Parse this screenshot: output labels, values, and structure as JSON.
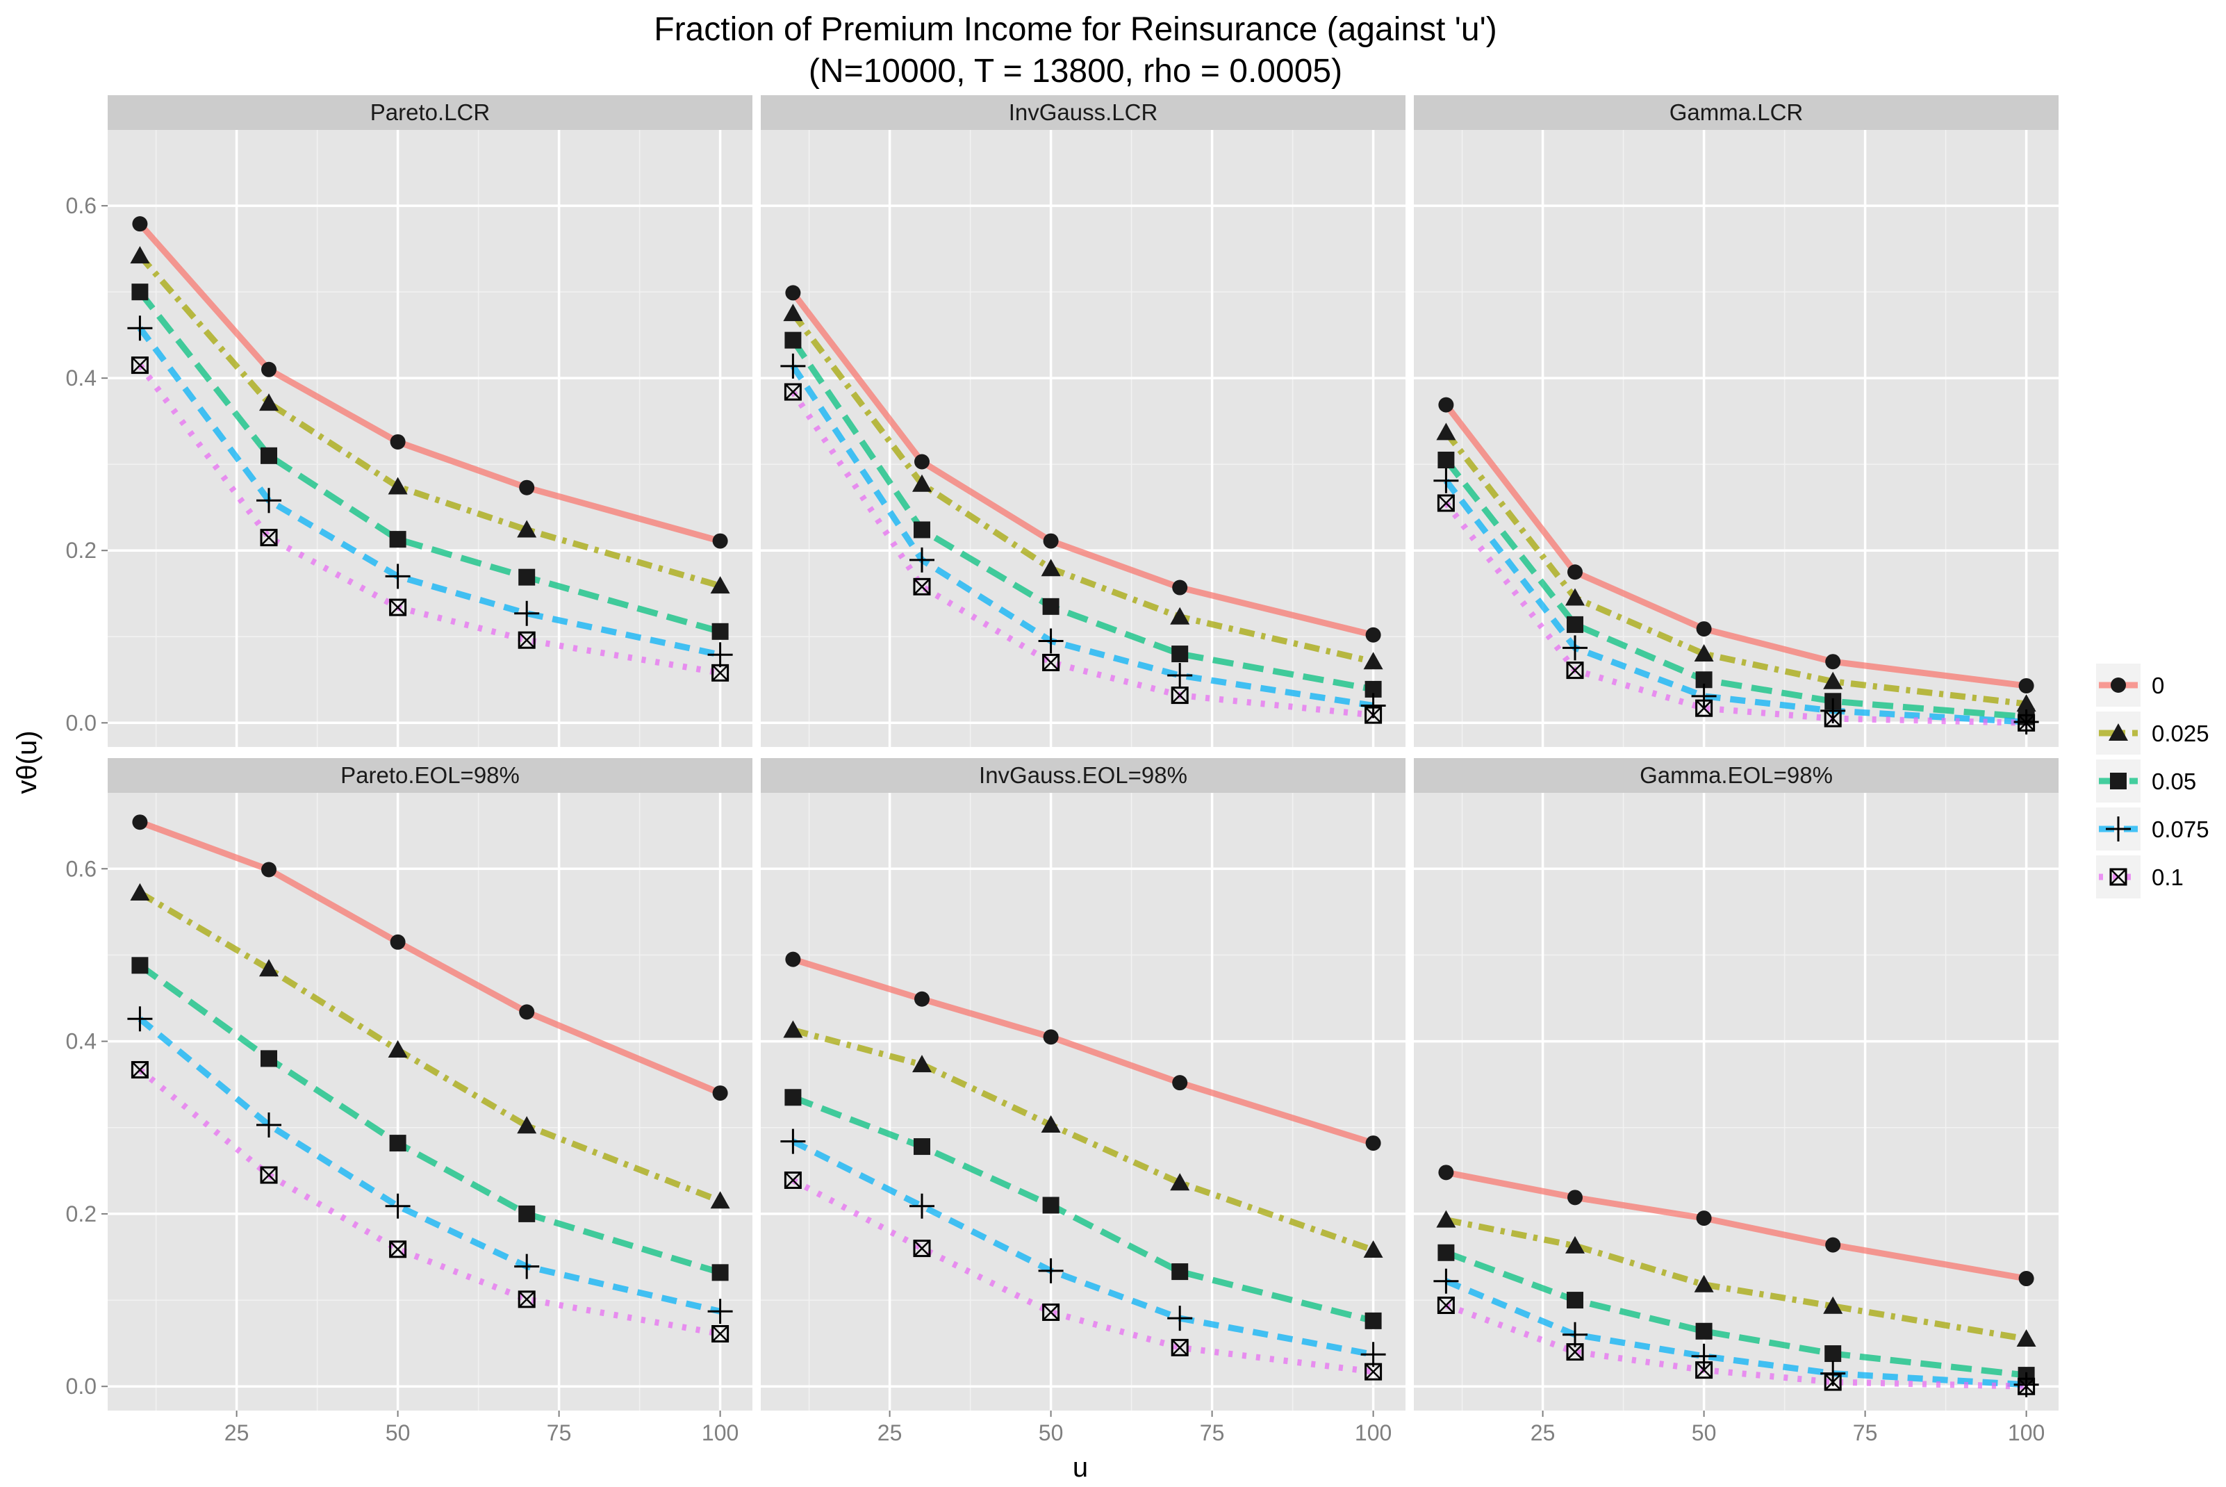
{
  "chart_data": {
    "type": "line",
    "title": "Fraction of Premium Income for Reinsurance (against 'u')",
    "subtitle": "(N=10000, T = 13800, rho = 0.0005)",
    "xlabel": "u",
    "ylabel": "vθ(u)",
    "x": [
      10,
      30,
      50,
      70,
      100
    ],
    "xlim": [
      5,
      105
    ],
    "ylim": [
      -0.028,
      0.688
    ],
    "xticks": [
      25,
      50,
      75,
      100
    ],
    "yticks": [
      0.0,
      0.2,
      0.4,
      0.6
    ],
    "xtick_labels": [
      "25",
      "50",
      "75",
      "100"
    ],
    "ytick_labels": [
      "0.0",
      "0.2",
      "0.4",
      "0.6"
    ],
    "grid": true,
    "legend_placement": "right",
    "series_meta": [
      {
        "name": "0",
        "color": "#F8766D",
        "marker": "circle",
        "dash": "solid"
      },
      {
        "name": "0.025",
        "color": "#A3A500",
        "marker": "triangle",
        "dash": "dotted-dash"
      },
      {
        "name": "0.05",
        "color": "#00BF7D",
        "marker": "square",
        "dash": "long-dash"
      },
      {
        "name": "0.075",
        "color": "#00B0F6",
        "marker": "plus",
        "dash": "dash"
      },
      {
        "name": "0.1",
        "color": "#E76BF3",
        "marker": "boxed-x",
        "dash": "dotted"
      }
    ],
    "panels": [
      {
        "name": "Pareto.LCR",
        "series": [
          {
            "name": "0",
            "values": [
              0.579,
              0.41,
              0.326,
              0.273,
              0.211
            ]
          },
          {
            "name": "0.025",
            "values": [
              0.542,
              0.371,
              0.274,
              0.224,
              0.159
            ]
          },
          {
            "name": "0.05",
            "values": [
              0.5,
              0.31,
              0.213,
              0.169,
              0.106
            ]
          },
          {
            "name": "0.075",
            "values": [
              0.458,
              0.258,
              0.17,
              0.127,
              0.079
            ]
          },
          {
            "name": "0.1",
            "values": [
              0.415,
              0.215,
              0.134,
              0.096,
              0.058
            ]
          }
        ]
      },
      {
        "name": "InvGauss.LCR",
        "series": [
          {
            "name": "0",
            "values": [
              0.499,
              0.303,
              0.211,
              0.157,
              0.102
            ]
          },
          {
            "name": "0.025",
            "values": [
              0.475,
              0.277,
              0.179,
              0.123,
              0.071
            ]
          },
          {
            "name": "0.05",
            "values": [
              0.444,
              0.224,
              0.135,
              0.08,
              0.039
            ]
          },
          {
            "name": "0.075",
            "values": [
              0.414,
              0.189,
              0.095,
              0.055,
              0.02
            ]
          },
          {
            "name": "0.1",
            "values": [
              0.384,
              0.158,
              0.07,
              0.032,
              0.009
            ]
          }
        ]
      },
      {
        "name": "Gamma.LCR",
        "series": [
          {
            "name": "0",
            "values": [
              0.369,
              0.175,
              0.109,
              0.071,
              0.043
            ]
          },
          {
            "name": "0.025",
            "values": [
              0.337,
              0.145,
              0.08,
              0.048,
              0.022
            ]
          },
          {
            "name": "0.05",
            "values": [
              0.305,
              0.114,
              0.05,
              0.025,
              0.007
            ]
          },
          {
            "name": "0.075",
            "values": [
              0.281,
              0.087,
              0.031,
              0.014,
              0.001
            ]
          },
          {
            "name": "0.1",
            "values": [
              0.255,
              0.061,
              0.017,
              0.005,
              0.0
            ]
          }
        ]
      },
      {
        "name": "Pareto.EOL=98%",
        "series": [
          {
            "name": "0",
            "values": [
              0.654,
              0.599,
              0.515,
              0.434,
              0.34
            ]
          },
          {
            "name": "0.025",
            "values": [
              0.572,
              0.484,
              0.39,
              0.302,
              0.215
            ]
          },
          {
            "name": "0.05",
            "values": [
              0.488,
              0.38,
              0.282,
              0.2,
              0.132
            ]
          },
          {
            "name": "0.075",
            "values": [
              0.426,
              0.303,
              0.209,
              0.139,
              0.087
            ]
          },
          {
            "name": "0.1",
            "values": [
              0.367,
              0.245,
              0.159,
              0.101,
              0.061
            ]
          }
        ]
      },
      {
        "name": "InvGauss.EOL=98%",
        "series": [
          {
            "name": "0",
            "values": [
              0.495,
              0.449,
              0.405,
              0.352,
              0.282
            ]
          },
          {
            "name": "0.025",
            "values": [
              0.413,
              0.373,
              0.303,
              0.236,
              0.158
            ]
          },
          {
            "name": "0.05",
            "values": [
              0.335,
              0.278,
              0.21,
              0.133,
              0.076
            ]
          },
          {
            "name": "0.075",
            "values": [
              0.284,
              0.209,
              0.134,
              0.079,
              0.037
            ]
          },
          {
            "name": "0.1",
            "values": [
              0.239,
              0.16,
              0.086,
              0.045,
              0.017
            ]
          }
        ]
      },
      {
        "name": "Gamma.EOL=98%",
        "series": [
          {
            "name": "0",
            "values": [
              0.248,
              0.219,
              0.195,
              0.164,
              0.125
            ]
          },
          {
            "name": "0.025",
            "values": [
              0.193,
              0.163,
              0.118,
              0.093,
              0.055
            ]
          },
          {
            "name": "0.05",
            "values": [
              0.155,
              0.1,
              0.064,
              0.038,
              0.013
            ]
          },
          {
            "name": "0.075",
            "values": [
              0.122,
              0.06,
              0.035,
              0.015,
              0.002
            ]
          },
          {
            "name": "0.1",
            "values": [
              0.094,
              0.04,
              0.019,
              0.005,
              0.0
            ]
          }
        ]
      }
    ]
  }
}
